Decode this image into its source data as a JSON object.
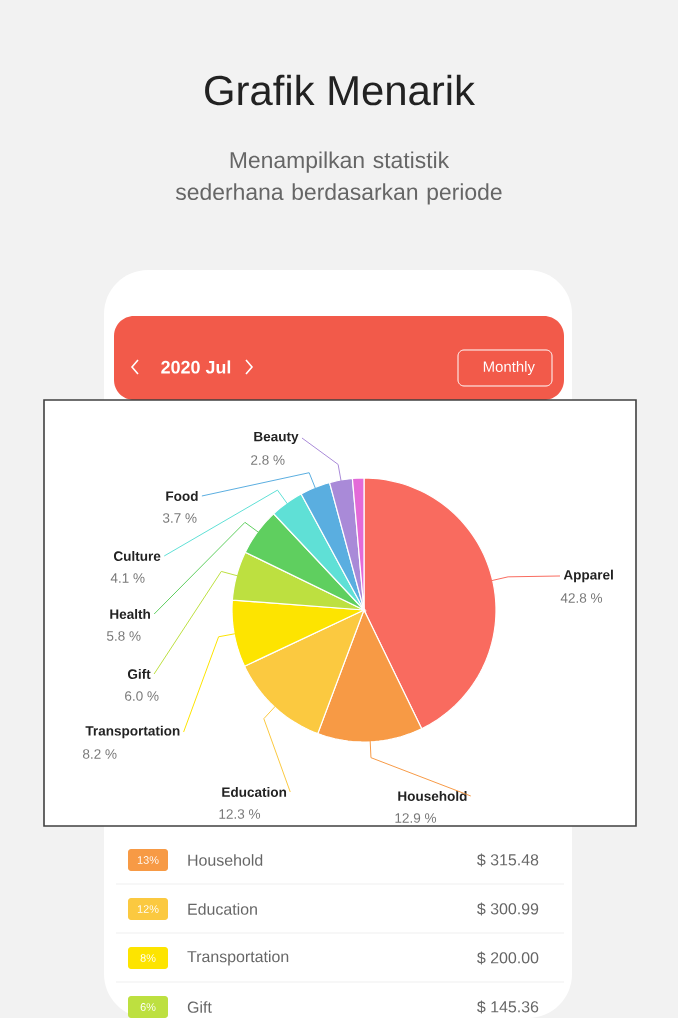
{
  "chart_data": {
    "type": "pie",
    "title": "Grafik Menarik",
    "subtitle": "Menampilkan statistik sederhana berdasarkan periode",
    "categories": [
      "Apparel",
      "Household",
      "Education",
      "Transportation",
      "Gift",
      "Health",
      "Culture",
      "Food",
      "Beauty",
      null
    ],
    "values": [
      42.8,
      12.9,
      12.3,
      8.2,
      6.0,
      5.8,
      4.1,
      3.7,
      2.8,
      1.4
    ],
    "colors": [
      "#f96b5f",
      "#f79a45",
      "#fbc940",
      "#fde400",
      "#bde040",
      "#5fcf5f",
      "#5fe0d6",
      "#5aaee0",
      "#a98ad8",
      "#e36ad8"
    ],
    "value_labels": [
      "42.8 %",
      "12.9 %",
      "12.3 %",
      "8.2 %",
      "6.0 %",
      "5.8 %",
      "4.1 %",
      "3.7 %",
      "2.8 %",
      null
    ],
    "annotations": [
      "2020 Jul",
      "Monthly",
      "13%",
      "Household",
      "$ 315.48",
      "12%",
      "Education",
      "$ 300.99",
      "8%",
      "Transportation",
      "$ 200.00",
      "6%",
      "Gift",
      "$ 145.36"
    ]
  }
}
